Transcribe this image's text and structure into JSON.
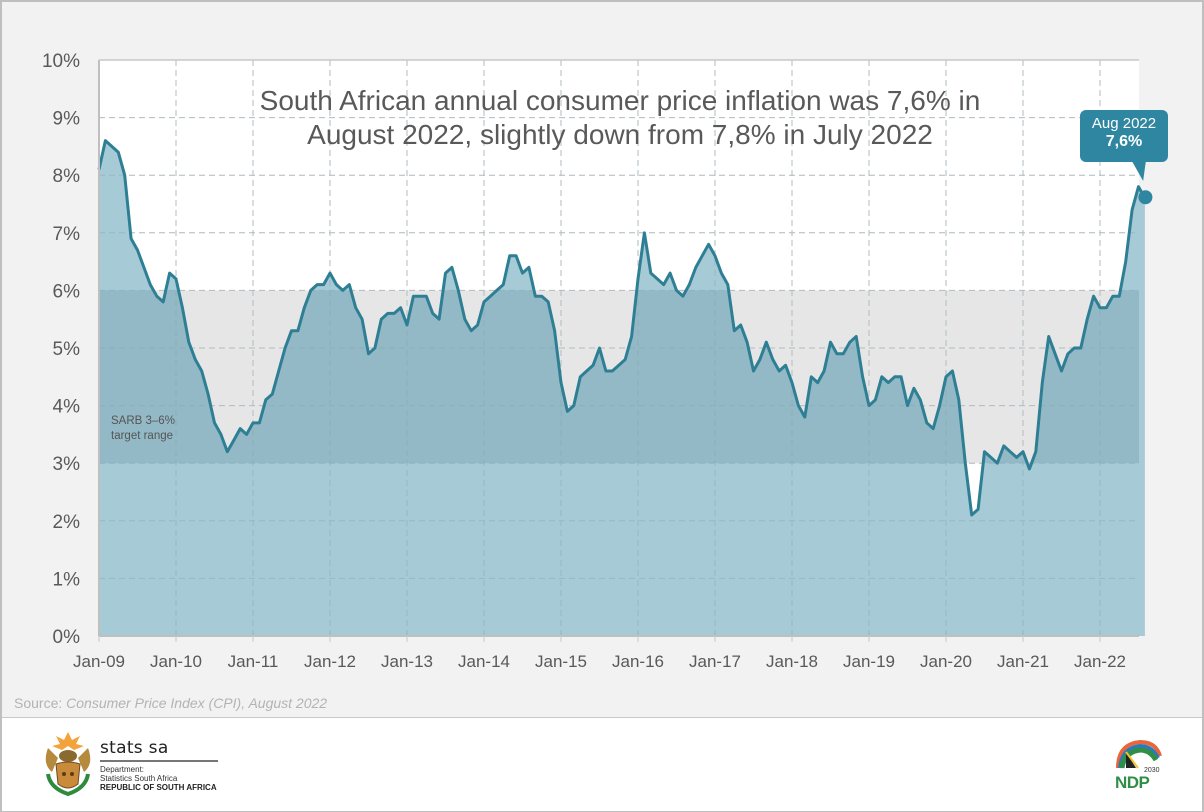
{
  "title": {
    "line1": "South African annual consumer price inflation was 7,6% in",
    "line2": "August 2022, slightly down from 7,8% in July 2022"
  },
  "callout": {
    "date": "Aug 2022",
    "value": "7,6%"
  },
  "target_band": {
    "label_line1": "SARB 3–6%",
    "label_line2": "target range",
    "low": 3,
    "high": 6
  },
  "source": {
    "prefix": "Source: ",
    "text": "Consumer Price Index (CPI), August 2022"
  },
  "footer": {
    "org_name": "stats sa",
    "dept_line1": "Department:",
    "dept_line2": "Statistics South Africa",
    "country": "REPUBLIC OF SOUTH AFRICA",
    "ndp_logo_text": "NDP",
    "ndp_year": "2030"
  },
  "colors": {
    "line": "#2e7f94",
    "area": "#a6cad6",
    "band_fill": "#e6e6e6",
    "band_overlay": "#93b9c6",
    "callout": "#2e86a0"
  },
  "chart_data": {
    "type": "area",
    "title": "South African annual consumer price inflation was 7,6% in August 2022, slightly down from 7,8% in July 2022",
    "xlabel": "",
    "ylabel": "",
    "ylim": [
      0,
      10
    ],
    "yticks": [
      "0%",
      "1%",
      "2%",
      "3%",
      "4%",
      "5%",
      "6%",
      "7%",
      "8%",
      "9%",
      "10%"
    ],
    "xticks": [
      "Jan-09",
      "Jan-10",
      "Jan-11",
      "Jan-12",
      "Jan-13",
      "Jan-14",
      "Jan-15",
      "Jan-16",
      "Jan-17",
      "Jan-18",
      "Jan-19",
      "Jan-20",
      "Jan-21",
      "Jan-22"
    ],
    "grid": true,
    "legend": "none",
    "x_start": "Jan-2009",
    "x_end": "Aug-2022",
    "frequency": "monthly",
    "series": [
      {
        "name": "Annual CPI inflation (%)",
        "values": [
          8.1,
          8.6,
          8.5,
          8.4,
          8.0,
          6.9,
          6.7,
          6.4,
          6.1,
          5.9,
          5.8,
          6.3,
          6.2,
          5.7,
          5.1,
          4.8,
          4.6,
          4.2,
          3.7,
          3.5,
          3.2,
          3.4,
          3.6,
          3.5,
          3.7,
          3.7,
          4.1,
          4.2,
          4.6,
          5.0,
          5.3,
          5.3,
          5.7,
          6.0,
          6.1,
          6.1,
          6.3,
          6.1,
          6.0,
          6.1,
          5.7,
          5.5,
          4.9,
          5.0,
          5.5,
          5.6,
          5.6,
          5.7,
          5.4,
          5.9,
          5.9,
          5.9,
          5.6,
          5.5,
          6.3,
          6.4,
          6.0,
          5.5,
          5.3,
          5.4,
          5.8,
          5.9,
          6.0,
          6.1,
          6.6,
          6.6,
          6.3,
          6.4,
          5.9,
          5.9,
          5.8,
          5.3,
          4.4,
          3.9,
          4.0,
          4.5,
          4.6,
          4.7,
          5.0,
          4.6,
          4.6,
          4.7,
          4.8,
          5.2,
          6.2,
          7.0,
          6.3,
          6.2,
          6.1,
          6.3,
          6.0,
          5.9,
          6.1,
          6.4,
          6.6,
          6.8,
          6.6,
          6.3,
          6.1,
          5.3,
          5.4,
          5.1,
          4.6,
          4.8,
          5.1,
          4.8,
          4.6,
          4.7,
          4.4,
          4.0,
          3.8,
          4.5,
          4.4,
          4.6,
          5.1,
          4.9,
          4.9,
          5.1,
          5.2,
          4.5,
          4.0,
          4.1,
          4.5,
          4.4,
          4.5,
          4.5,
          4.0,
          4.3,
          4.1,
          3.7,
          3.6,
          4.0,
          4.5,
          4.6,
          4.1,
          3.0,
          2.1,
          2.2,
          3.2,
          3.1,
          3.0,
          3.3,
          3.2,
          3.1,
          3.2,
          2.9,
          3.2,
          4.4,
          5.2,
          4.9,
          4.6,
          4.9,
          5.0,
          5.0,
          5.5,
          5.9,
          5.7,
          5.7,
          5.9,
          5.9,
          6.5,
          7.4,
          7.8,
          7.6
        ]
      }
    ],
    "annotations": [
      {
        "text": "Aug 2022 7,6%",
        "x": "Aug-2022",
        "y": 7.6
      },
      {
        "text": "SARB 3–6% target range",
        "band": [
          3,
          6
        ]
      }
    ]
  }
}
